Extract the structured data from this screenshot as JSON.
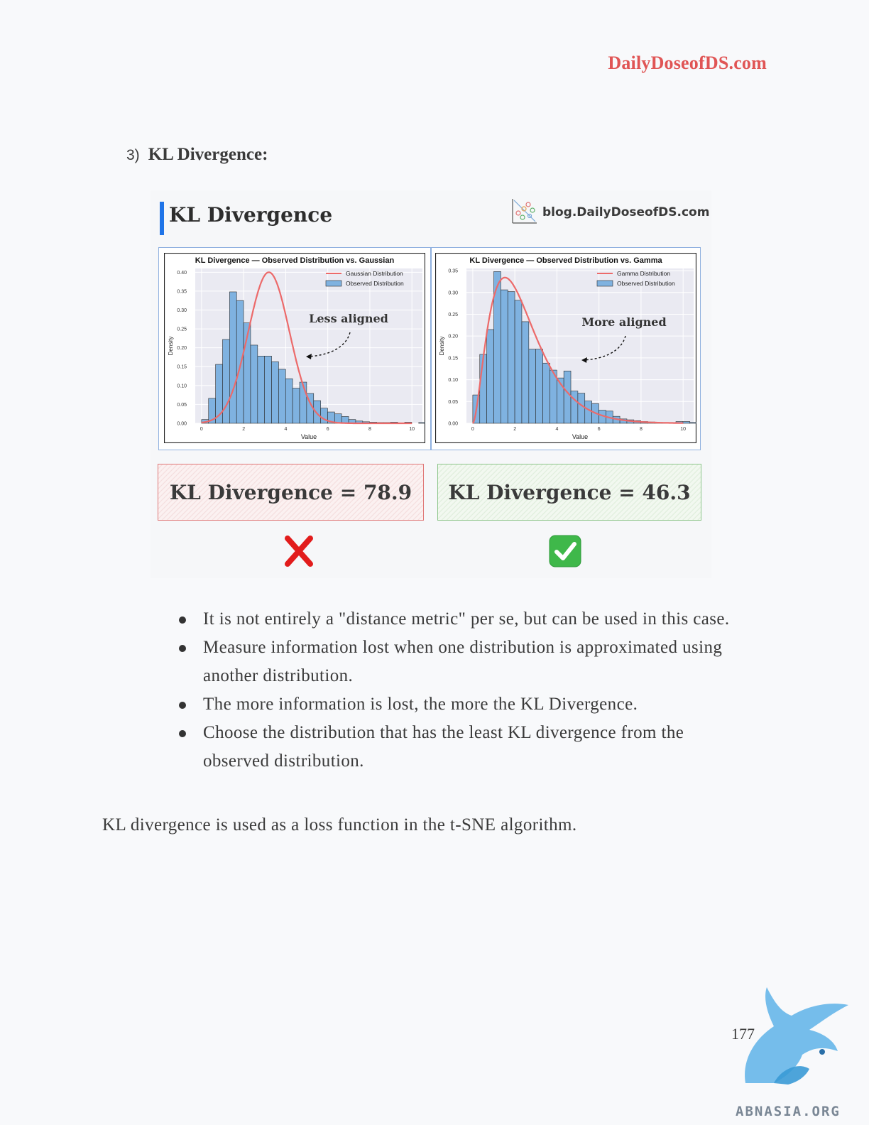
{
  "header": {
    "site": "DailyDoseofDS.com"
  },
  "section": {
    "number": "3)",
    "title": "KL Divergence:"
  },
  "infographic": {
    "title": "KL Divergence",
    "brand": "blog.DailyDoseofDS.com",
    "left_result": "KL Divergence = 78.9",
    "right_result": "KL Divergence = 46.3",
    "left_mark_icon": "red-cross-icon",
    "right_mark_icon": "green-check-icon"
  },
  "chart_data": [
    {
      "type": "bar",
      "title": "KL Divergence — Observed Distribution  vs. Gaussian",
      "xlabel": "Value",
      "ylabel": "Density",
      "xlim": [
        -0.3,
        10.5
      ],
      "ylim": [
        0,
        0.41
      ],
      "xticks": [
        "0",
        "2",
        "4",
        "6",
        "8",
        "10"
      ],
      "yticks": [
        "0.00",
        "0.05",
        "0.10",
        "0.15",
        "0.20",
        "0.25",
        "0.30",
        "0.35",
        "0.40"
      ],
      "legend": [
        "Gaussian Distribution",
        "Observed Distribution"
      ],
      "legend_position": "top-right",
      "annotation": "Less aligned",
      "grid": true,
      "colors": {
        "bars": "#7fb2e0",
        "curve": "#ec6a6a",
        "background": "#eaeaf2"
      },
      "bin_width": 0.333,
      "bins_start": 0,
      "bar_values": [
        0.01,
        0.066,
        0.156,
        0.222,
        0.348,
        0.325,
        0.266,
        0.207,
        0.178,
        0.178,
        0.163,
        0.143,
        0.118,
        0.093,
        0.109,
        0.079,
        0.06,
        0.04,
        0.03,
        0.025,
        0.018,
        0.01,
        0.006,
        0.004,
        0.003,
        0.002,
        0.002,
        0.003,
        0,
        0.003,
        0,
        0.002,
        0,
        0
      ],
      "curve": {
        "kind": "normal",
        "mean": 3.2,
        "sd": 0.98,
        "peak": 0.4
      }
    },
    {
      "type": "bar",
      "title": "KL Divergence — Observed Distribution  vs. Gamma",
      "xlabel": "Value",
      "ylabel": "Density",
      "xlim": [
        -0.3,
        10.5
      ],
      "ylim": [
        0,
        0.355
      ],
      "xticks": [
        "0",
        "2",
        "4",
        "6",
        "8",
        "10"
      ],
      "yticks": [
        "0.00",
        "0.05",
        "0.10",
        "0.15",
        "0.20",
        "0.25",
        "0.30",
        "0.35"
      ],
      "legend": [
        "Gamma Distribution",
        "Observed Distribution"
      ],
      "legend_position": "top-right",
      "annotation": "More aligned",
      "grid": true,
      "colors": {
        "bars": "#7fb2e0",
        "curve": "#ec6a6a",
        "background": "#eaeaf2"
      },
      "bin_width": 0.333,
      "bins_start": 0,
      "bar_values": [
        0.065,
        0.158,
        0.215,
        0.348,
        0.306,
        0.302,
        0.282,
        0.233,
        0.17,
        0.17,
        0.138,
        0.122,
        0.104,
        0.12,
        0.074,
        0.069,
        0.051,
        0.045,
        0.03,
        0.028,
        0.016,
        0.01,
        0.008,
        0.006,
        0.004,
        0.003,
        0.002,
        0.002,
        0.002,
        0.004,
        0.004,
        0.002,
        0,
        0
      ],
      "curve": {
        "kind": "gamma",
        "shape": 2.8,
        "scale": 0.85,
        "peak": 0.305
      }
    }
  ],
  "bullets": [
    "It is not entirely a \"distance metric\" per se, but can be used in this case.",
    "Measure information lost when one distribution is approximated using another distribution.",
    "The more information is lost, the more the KL Divergence.",
    "Choose the distribution that has the least KL divergence from the observed distribution."
  ],
  "closing": "KL divergence is used as a loss function in the t-SNE algorithm.",
  "page_number": "177",
  "watermark": {
    "text": "ABNASIA.ORG",
    "icon": "griffin-logo-icon"
  }
}
